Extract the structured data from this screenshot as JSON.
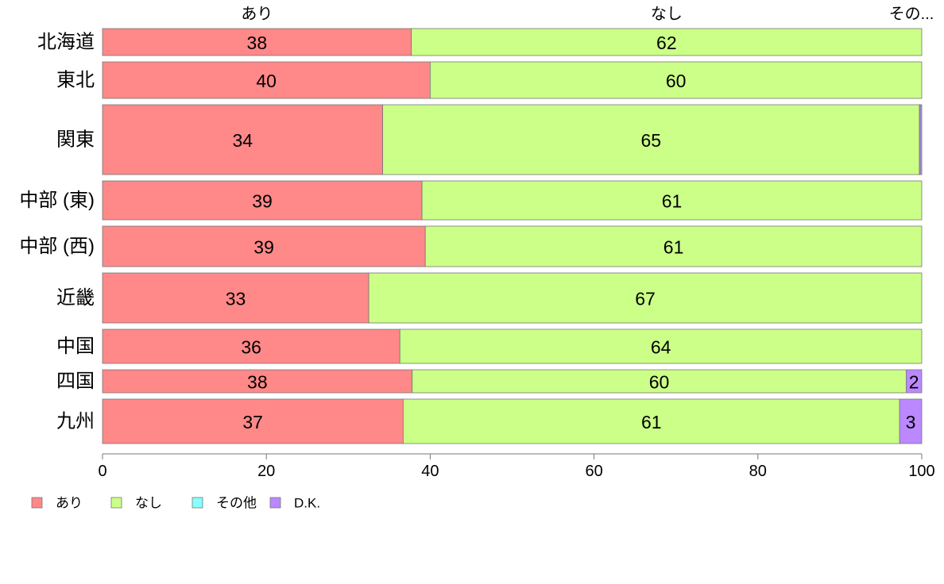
{
  "chart_data": {
    "type": "bar",
    "orientation": "horizontal",
    "stacked": true,
    "categories": [
      "北海道",
      "東北",
      "関東",
      "中部 (東)",
      "中部 (西)",
      "近畿",
      "中国",
      "四国",
      "九州"
    ],
    "series": [
      {
        "name": "あり",
        "color": "#ff8888",
        "values": [
          37.7,
          40.0,
          34.2,
          39.0,
          39.4,
          32.5,
          36.3,
          37.8,
          36.7
        ]
      },
      {
        "name": "なし",
        "color": "#ccff88",
        "values": [
          62.3,
          60.0,
          65.5,
          61.0,
          60.6,
          67.5,
          63.7,
          60.3,
          60.6
        ]
      },
      {
        "name": "その他",
        "color": "#88ffff",
        "values": [
          0,
          0,
          0.1,
          0,
          0,
          0,
          0,
          0,
          0
        ]
      },
      {
        "name": "D.K.",
        "color": "#bb88ff",
        "values": [
          0,
          0,
          0.2,
          0,
          0,
          0,
          0,
          1.9,
          2.7
        ]
      }
    ],
    "data_labels": [
      [
        "38",
        "62",
        "",
        ""
      ],
      [
        "40",
        "60",
        "",
        ""
      ],
      [
        "34",
        "65",
        "",
        ""
      ],
      [
        "39",
        "61",
        "",
        ""
      ],
      [
        "39",
        "61",
        "",
        ""
      ],
      [
        "33",
        "67",
        "",
        ""
      ],
      [
        "36",
        "64",
        "",
        ""
      ],
      [
        "38",
        "60",
        "",
        "2"
      ],
      [
        "37",
        "61",
        "",
        "3"
      ]
    ],
    "top_labels": [
      "あり",
      "なし",
      "その..."
    ],
    "xlim": [
      0,
      100
    ],
    "xticks": [
      "0",
      "20",
      "40",
      "60",
      "80",
      "100"
    ],
    "grid": false,
    "legend_position": "bottom-left"
  }
}
